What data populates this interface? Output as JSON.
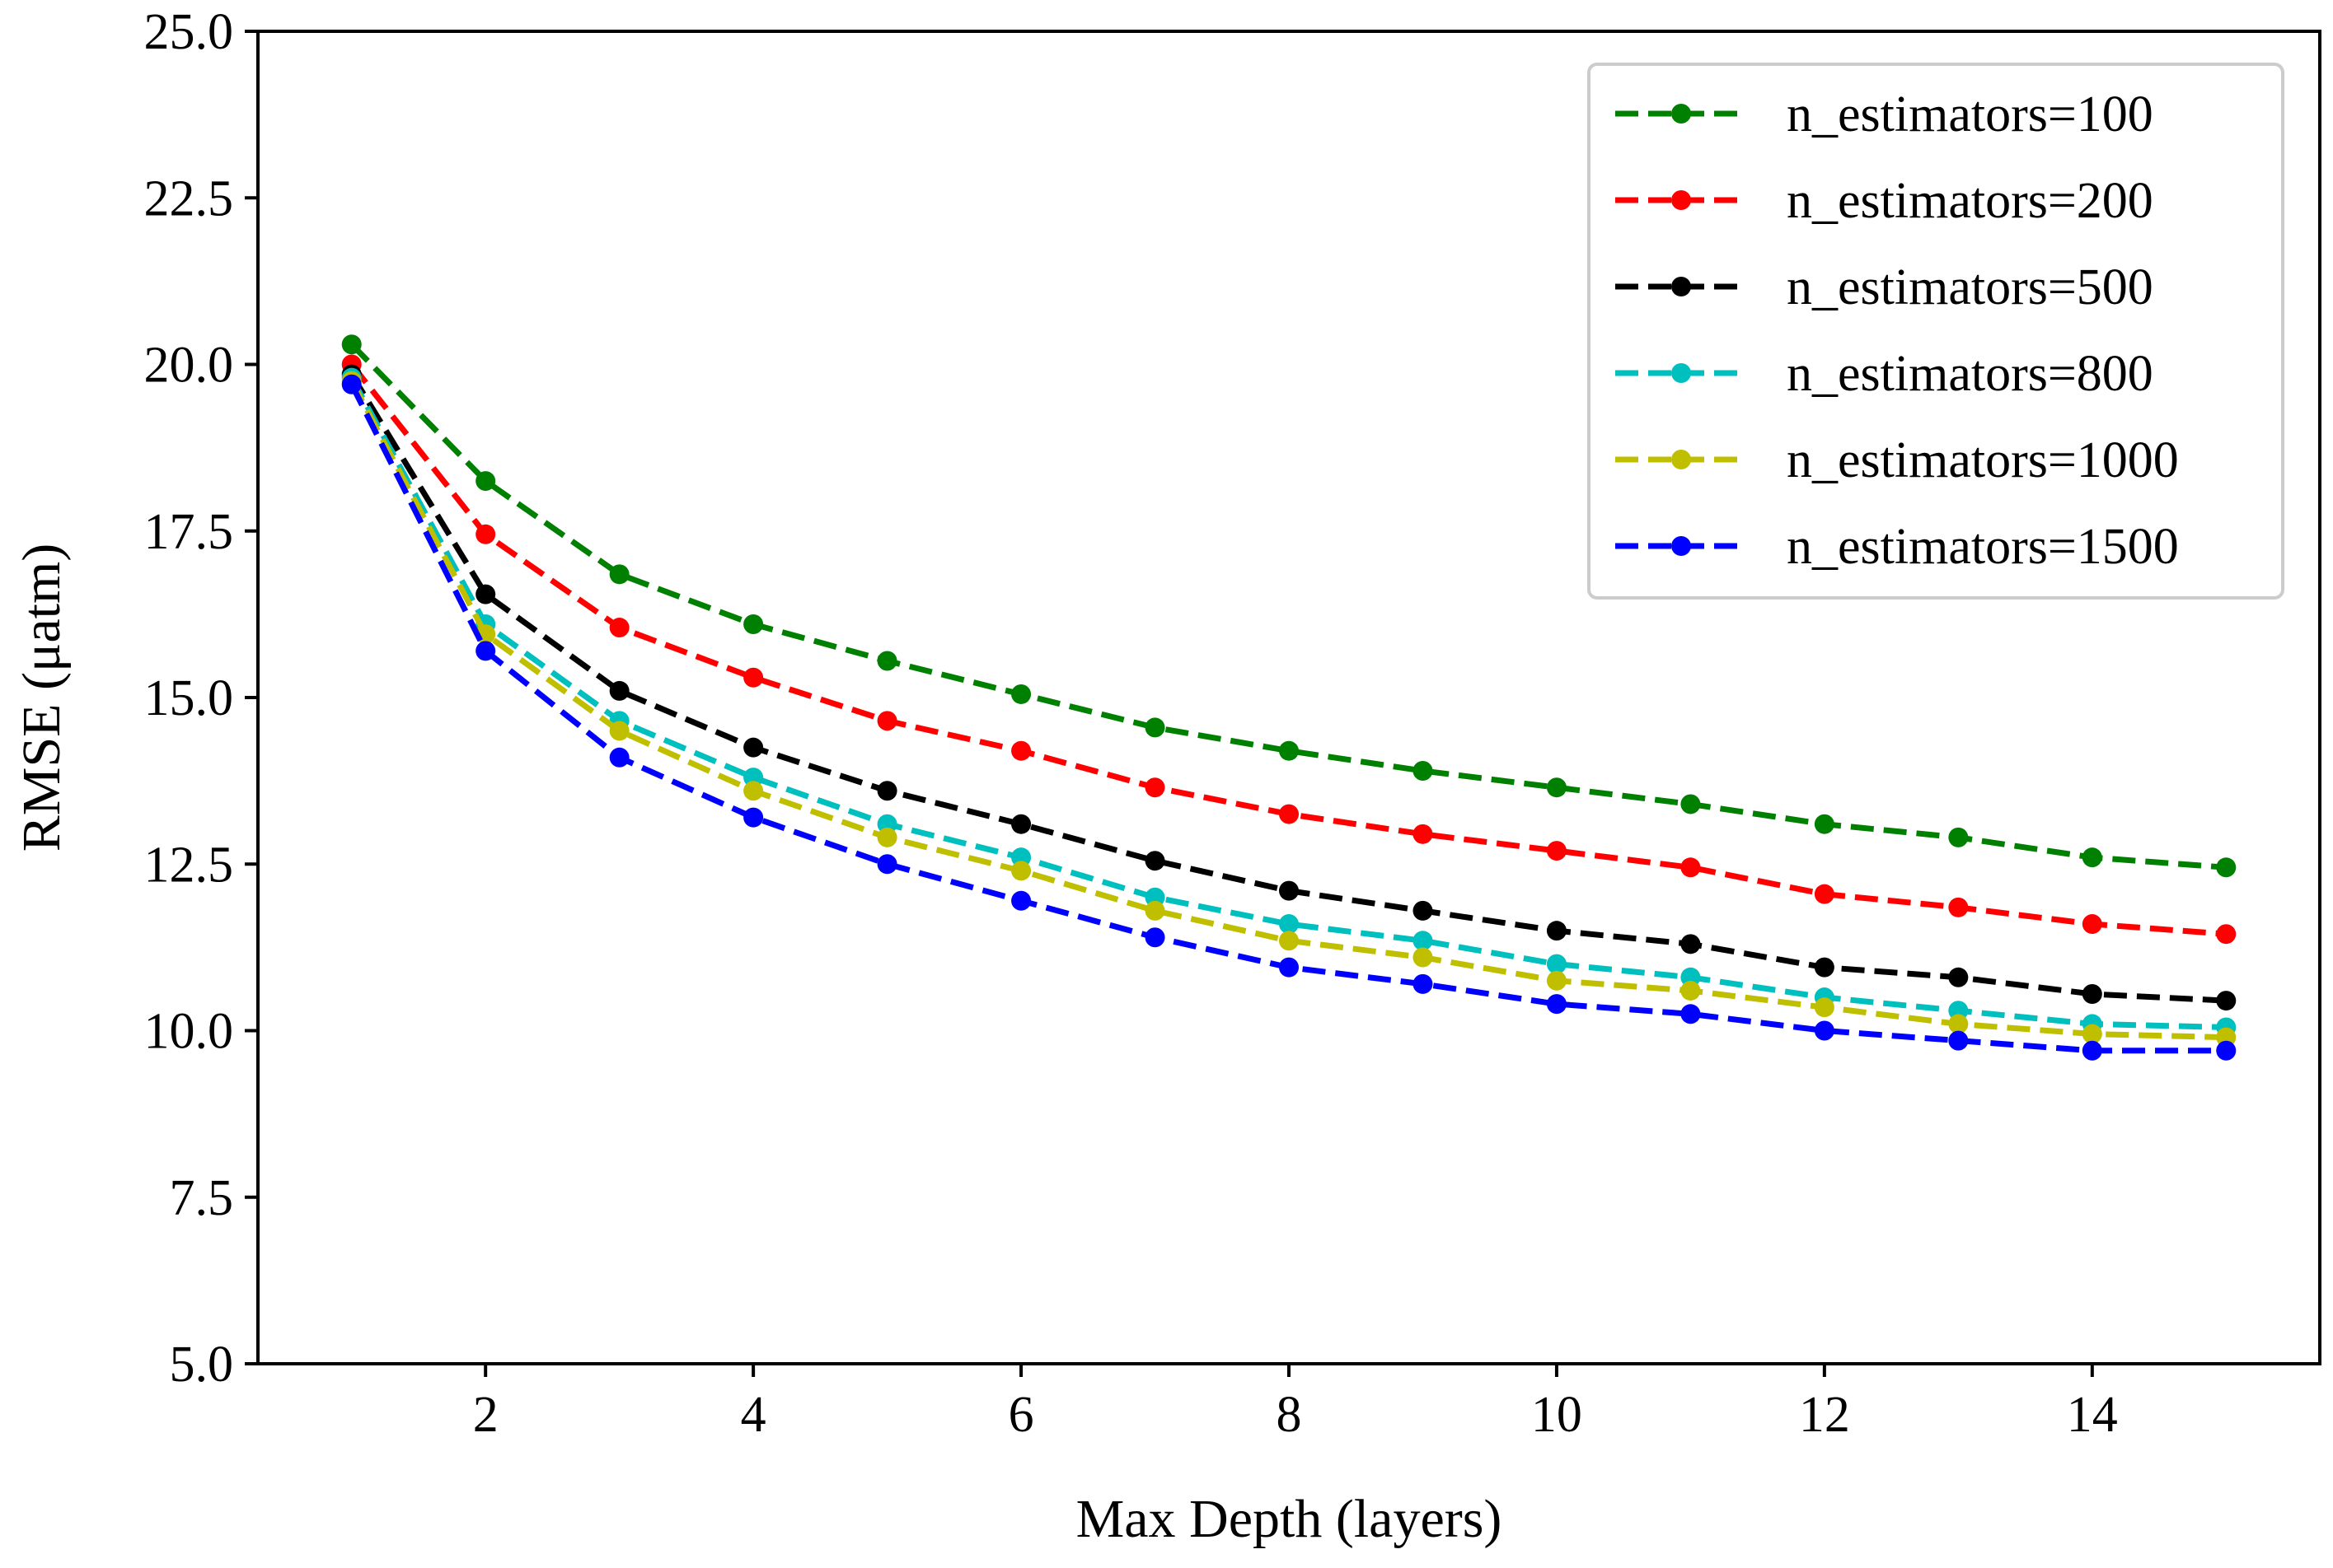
{
  "chart_data": {
    "type": "line",
    "title": "",
    "xlabel": "Max Depth (layers)",
    "ylabel": "RMSE (μatm)",
    "xlim": [
      0.3,
      15.7
    ],
    "ylim": [
      5.0,
      25.0
    ],
    "xticks": [
      2,
      4,
      6,
      8,
      10,
      12,
      14
    ],
    "xtick_labels": [
      "2",
      "4",
      "6",
      "8",
      "10",
      "12",
      "14"
    ],
    "yticks": [
      5.0,
      7.5,
      10.0,
      12.5,
      15.0,
      17.5,
      20.0,
      22.5,
      25.0
    ],
    "ytick_labels": [
      "5.0",
      "7.5",
      "10.0",
      "12.5",
      "15.0",
      "17.5",
      "20.0",
      "22.5",
      "25.0"
    ],
    "grid": false,
    "legend_position": "top-right",
    "x": [
      1,
      2,
      3,
      4,
      5,
      6,
      7,
      8,
      9,
      10,
      11,
      12,
      13,
      14,
      15
    ],
    "series": [
      {
        "name": "n_estimators=100",
        "color": "#008000",
        "values": [
          20.3,
          18.25,
          16.85,
          16.1,
          15.55,
          15.05,
          14.55,
          14.2,
          13.9,
          13.65,
          13.4,
          13.1,
          12.9,
          12.6,
          12.45
        ]
      },
      {
        "name": "n_estimators=200",
        "color": "#ff0000",
        "values": [
          20.0,
          17.45,
          16.05,
          15.3,
          14.65,
          14.2,
          13.65,
          13.25,
          12.95,
          12.7,
          12.45,
          12.05,
          11.85,
          11.6,
          11.45
        ]
      },
      {
        "name": "n_estimators=500",
        "color": "#000000",
        "values": [
          19.85,
          16.55,
          15.1,
          14.25,
          13.6,
          13.1,
          12.55,
          12.1,
          11.8,
          11.5,
          11.3,
          10.95,
          10.8,
          10.55,
          10.45
        ]
      },
      {
        "name": "n_estimators=800",
        "color": "#00bfbf",
        "values": [
          19.8,
          16.1,
          14.65,
          13.8,
          13.1,
          12.6,
          12.0,
          11.6,
          11.35,
          11.0,
          10.8,
          10.5,
          10.3,
          10.1,
          10.05
        ]
      },
      {
        "name": "n_estimators=1000",
        "color": "#bfbf00",
        "values": [
          19.75,
          15.95,
          14.5,
          13.6,
          12.9,
          12.4,
          11.8,
          11.35,
          11.1,
          10.75,
          10.6,
          10.35,
          10.1,
          9.95,
          9.9
        ]
      },
      {
        "name": "n_estimators=1500",
        "color": "#0000ff",
        "values": [
          19.7,
          15.7,
          14.1,
          13.2,
          12.5,
          11.95,
          11.4,
          10.95,
          10.7,
          10.4,
          10.25,
          10.0,
          9.85,
          9.7,
          9.7
        ]
      }
    ]
  }
}
